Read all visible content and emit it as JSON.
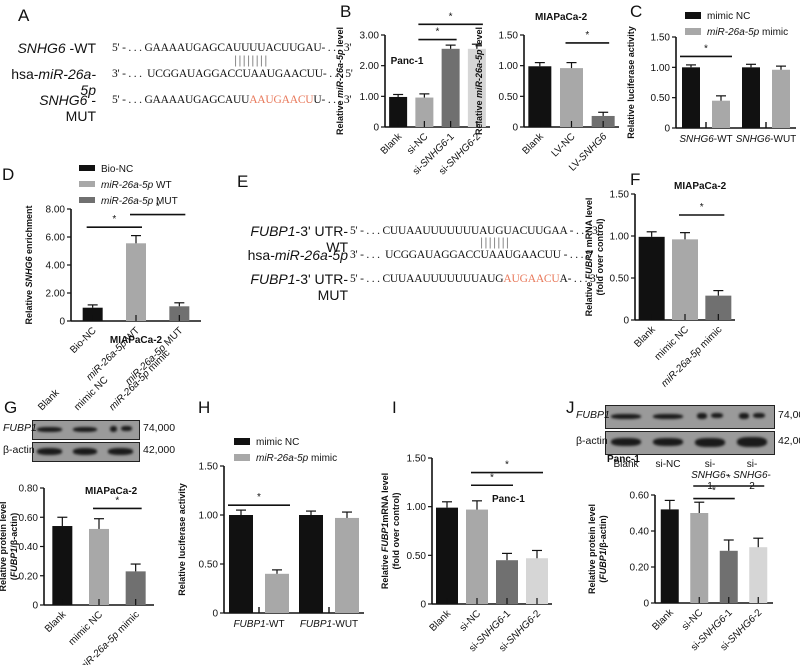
{
  "panels": {
    "A": {
      "letter": "A",
      "rows": [
        {
          "label_italic": "SNHG6",
          "label_rest": " -WT",
          "prefix": "5' - . . . ",
          "seq": "GAAAAUGAGCAUUUUACUUGAU",
          "mut": "",
          "tail": "",
          "suffix": "- . . . 3'"
        },
        {
          "label_pre": "hsa-",
          "label_italic": "miR-26a-5p",
          "prefix": "3' - . . .  ",
          "seq": "UCGGAUAGGACCUAAUGAACUU",
          "mut": "",
          "tail": "",
          "suffix": "- . . . 5'"
        },
        {
          "label_italic": "SNHG6",
          "label_rest": " -MUT",
          "prefix": "5' - . . . ",
          "seq": "GAAAAUGAGCAUU",
          "mut": "AAUGAACU",
          "tail": "U",
          "suffix": "- . . . 3'"
        }
      ],
      "pipes": "||||||||"
    },
    "E": {
      "letter": "E",
      "rows": [
        {
          "label_italic": "FUBP1",
          "label_rest": "-3' UTR-WT",
          "prefix": "5' - . . . ",
          "seq": "CUUAAUUUUUUUAUGUACUUGAA",
          "mut": "",
          "tail": "",
          "suffix": " - . . . 3'"
        },
        {
          "label_pre": "hsa-",
          "label_italic": "miR-26a-5p",
          "prefix": "3' - . . .  ",
          "seq": "UCGGAUAGGACCUAAUGAACUU",
          "mut": "",
          "tail": "",
          "suffix": " - . . . 5'"
        },
        {
          "label_italic": "FUBP1",
          "label_rest": "-3' UTR-MUT",
          "prefix": "5' - . . . ",
          "seq": "CUUAAUUUUUUUAUG",
          "mut": "AUGAACU",
          "tail": "A",
          "suffix": "- . . . 3'"
        }
      ],
      "pipes": "|||||||"
    },
    "G_blot": {
      "letter": "G",
      "lanes": [
        "Blank",
        "mimic NC",
        "miR-26a-5p mimic"
      ],
      "rows": [
        {
          "label": "FUBP1",
          "mw": "74,000"
        },
        {
          "label": "β-actin",
          "mw": "42,000"
        }
      ]
    },
    "J_blot": {
      "letter": "J",
      "lanes": [
        "Blank",
        "si-NC",
        "si-SNHG6-1",
        "si-SNHG6-2"
      ],
      "rows": [
        {
          "label": "FUBP1",
          "mw": "74,000"
        },
        {
          "label": "β-actin",
          "mw": "42,000"
        }
      ]
    },
    "other_letters": {
      "B": "B",
      "C": "C",
      "D": "D",
      "F": "F",
      "H": "H",
      "I": "I"
    }
  },
  "colors": {
    "black": "#111111",
    "light_gray": "#a8a8a8",
    "dark_gray": "#707070",
    "lighter_gray": "#d6d6d6",
    "mutation_red": "#e8785a"
  },
  "chart_data": [
    {
      "id": "B1",
      "type": "bar",
      "title": "Panc-1",
      "ylabel": "Relative miR-26a-5p level",
      "categories": [
        "Blank",
        "si-NC",
        "si-SNHG6-1",
        "si-SNHG6-2"
      ],
      "values": [
        0.98,
        0.96,
        2.55,
        2.55
      ],
      "errors": [
        0.08,
        0.12,
        0.12,
        0.15
      ],
      "ylim": [
        0,
        3.0
      ],
      "yticks": [
        "0",
        "1.00",
        "2.00",
        "3.00"
      ],
      "significance": [
        {
          "from": 1,
          "to": 2,
          "label": "*"
        },
        {
          "from": 1,
          "to": 3,
          "label": "*"
        }
      ]
    },
    {
      "id": "B2",
      "type": "bar",
      "title": "MIAPaCa-2",
      "ylabel": "Relative miR-26a-5p level",
      "categories": [
        "Blank",
        "LV-NC",
        "LV-SNHG6"
      ],
      "values": [
        0.99,
        0.96,
        0.18
      ],
      "errors": [
        0.06,
        0.09,
        0.06
      ],
      "ylim": [
        0,
        1.5
      ],
      "yticks": [
        "0",
        "0.50",
        "1.00",
        "1.50"
      ],
      "significance": [
        {
          "from": 1,
          "to": 2,
          "label": "*"
        }
      ]
    },
    {
      "id": "C",
      "type": "bar",
      "ylabel": "Relative luciferase activity",
      "categories": [
        "SNHG6-WT",
        "SNHG6-WUT"
      ],
      "series": [
        {
          "name": "mimic NC",
          "values": [
            1.0,
            1.0
          ],
          "errors": [
            0.04,
            0.05
          ]
        },
        {
          "name": "miR-26a-5p mimic",
          "values": [
            0.45,
            0.96
          ],
          "errors": [
            0.08,
            0.06
          ]
        }
      ],
      "ylim": [
        0,
        1.5
      ],
      "yticks": [
        "0",
        "0.50",
        "1.00",
        "1.50"
      ],
      "legend_position": "top",
      "significance": [
        {
          "group": 0,
          "label": "*"
        }
      ]
    },
    {
      "id": "D",
      "type": "bar",
      "xlabel": "MIAPaCa-2",
      "ylabel": "Relative SNHG6 enrichment",
      "categories": [
        "Bio-NC",
        "miR-26a-5p WT",
        "miR-26a-5p MUT"
      ],
      "values": [
        0.95,
        5.55,
        1.05
      ],
      "errors": [
        0.2,
        0.55,
        0.25
      ],
      "ylim": [
        0,
        8.0
      ],
      "yticks": [
        "0",
        "2.00",
        "4.00",
        "6.00",
        "8.00"
      ],
      "legend": [
        "Bio-NC",
        "miR-26a-5p WT",
        "miR-26a-5p MUT"
      ],
      "significance": [
        {
          "from": 0,
          "to": 1,
          "label": "*"
        },
        {
          "from": 1,
          "to": 2,
          "label": "*"
        }
      ]
    },
    {
      "id": "F",
      "type": "bar",
      "title": "MIAPaCa-2",
      "ylabel": "Relative FUBP1 mRNA level (fold over control)",
      "categories": [
        "Blank",
        "mimic NC",
        "miR-26a-5p mimic"
      ],
      "values": [
        0.99,
        0.96,
        0.29
      ],
      "errors": [
        0.06,
        0.08,
        0.06
      ],
      "ylim": [
        0,
        1.5
      ],
      "yticks": [
        "0",
        "0.50",
        "1.00",
        "1.50"
      ],
      "significance": [
        {
          "from": 1,
          "to": 2,
          "label": "*"
        }
      ]
    },
    {
      "id": "G",
      "type": "bar",
      "title": "MIAPaCa-2",
      "ylabel": "Relative protein level (FUBP1/β-actin)",
      "categories": [
        "Blank",
        "mimic NC",
        "miR-26a-5p mimic"
      ],
      "values": [
        0.54,
        0.52,
        0.23
      ],
      "errors": [
        0.06,
        0.07,
        0.05
      ],
      "ylim": [
        0,
        0.8
      ],
      "yticks": [
        "0",
        "0.20",
        "0.40",
        "0.60",
        "0.80"
      ],
      "significance": [
        {
          "from": 1,
          "to": 2,
          "label": "*"
        }
      ]
    },
    {
      "id": "H",
      "type": "bar",
      "ylabel": "Relative luciferase activity",
      "categories": [
        "FUBP1-WT",
        "FUBP1-WUT"
      ],
      "series": [
        {
          "name": "mimic NC",
          "values": [
            1.0,
            1.0
          ],
          "errors": [
            0.05,
            0.04
          ]
        },
        {
          "name": "miR-26a-5p mimic",
          "values": [
            0.4,
            0.97
          ],
          "errors": [
            0.04,
            0.06
          ]
        }
      ],
      "ylim": [
        0,
        1.5
      ],
      "yticks": [
        "0",
        "0.50",
        "1.00",
        "1.50"
      ],
      "legend_position": "top",
      "significance": [
        {
          "group": 0,
          "label": "*"
        }
      ]
    },
    {
      "id": "I",
      "type": "bar",
      "title": "Panc-1",
      "ylabel": "Relative FUBP1 mRNA level (fold over control)",
      "categories": [
        "Blank",
        "si-NC",
        "si-SNHG6-1",
        "si-SNHG6-2"
      ],
      "values": [
        0.99,
        0.97,
        0.45,
        0.47
      ],
      "errors": [
        0.06,
        0.09,
        0.07,
        0.08
      ],
      "ylim": [
        0,
        1.5
      ],
      "yticks": [
        "0",
        "0.50",
        "1.00",
        "1.50"
      ],
      "significance": [
        {
          "from": 1,
          "to": 2,
          "label": "*"
        },
        {
          "from": 1,
          "to": 3,
          "label": "*"
        }
      ]
    },
    {
      "id": "J",
      "type": "bar",
      "title": "Panc-1",
      "ylabel": "Relative protein level (FUBP1/β-actin)",
      "categories": [
        "Blank",
        "si-NC",
        "si-SNHG6-1",
        "si-SNHG6-2"
      ],
      "values": [
        0.52,
        0.5,
        0.29,
        0.31
      ],
      "errors": [
        0.05,
        0.06,
        0.06,
        0.05
      ],
      "ylim": [
        0,
        0.6
      ],
      "yticks": [
        "0",
        "0.20",
        "0.40",
        "0.60"
      ],
      "significance": [
        {
          "from": 1,
          "to": 2,
          "label": "*"
        },
        {
          "from": 1,
          "to": 3,
          "label": "*"
        }
      ]
    }
  ]
}
